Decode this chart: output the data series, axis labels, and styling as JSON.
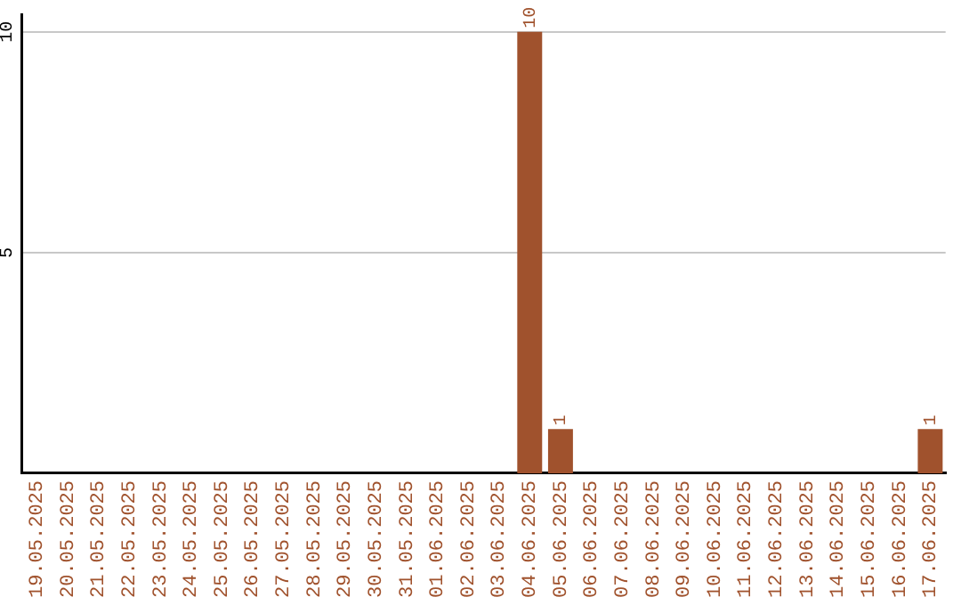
{
  "chart_data": {
    "type": "bar",
    "categories": [
      "19.05.2025",
      "20.05.2025",
      "21.05.2025",
      "22.05.2025",
      "23.05.2025",
      "24.05.2025",
      "25.05.2025",
      "26.05.2025",
      "27.05.2025",
      "28.05.2025",
      "29.05.2025",
      "30.05.2025",
      "31.05.2025",
      "01.06.2025",
      "02.06.2025",
      "03.06.2025",
      "04.06.2025",
      "05.06.2025",
      "06.06.2025",
      "07.06.2025",
      "08.06.2025",
      "09.06.2025",
      "10.06.2025",
      "11.06.2025",
      "12.06.2025",
      "13.06.2025",
      "14.06.2025",
      "15.06.2025",
      "16.06.2025",
      "17.06.2025"
    ],
    "values": [
      0,
      0,
      0,
      0,
      0,
      0,
      0,
      0,
      0,
      0,
      0,
      0,
      0,
      0,
      0,
      0,
      10,
      1,
      0,
      0,
      0,
      0,
      0,
      0,
      0,
      0,
      0,
      0,
      0,
      1
    ],
    "value_labels": [
      null,
      null,
      null,
      null,
      null,
      null,
      null,
      null,
      null,
      null,
      null,
      null,
      null,
      null,
      null,
      null,
      "10",
      "1",
      null,
      null,
      null,
      null,
      null,
      null,
      null,
      null,
      null,
      null,
      null,
      "1"
    ],
    "color": "#a0522d",
    "ylim": [
      0,
      10.4
    ],
    "yticks": [
      5,
      10
    ],
    "grid": "y",
    "legend": false
  }
}
